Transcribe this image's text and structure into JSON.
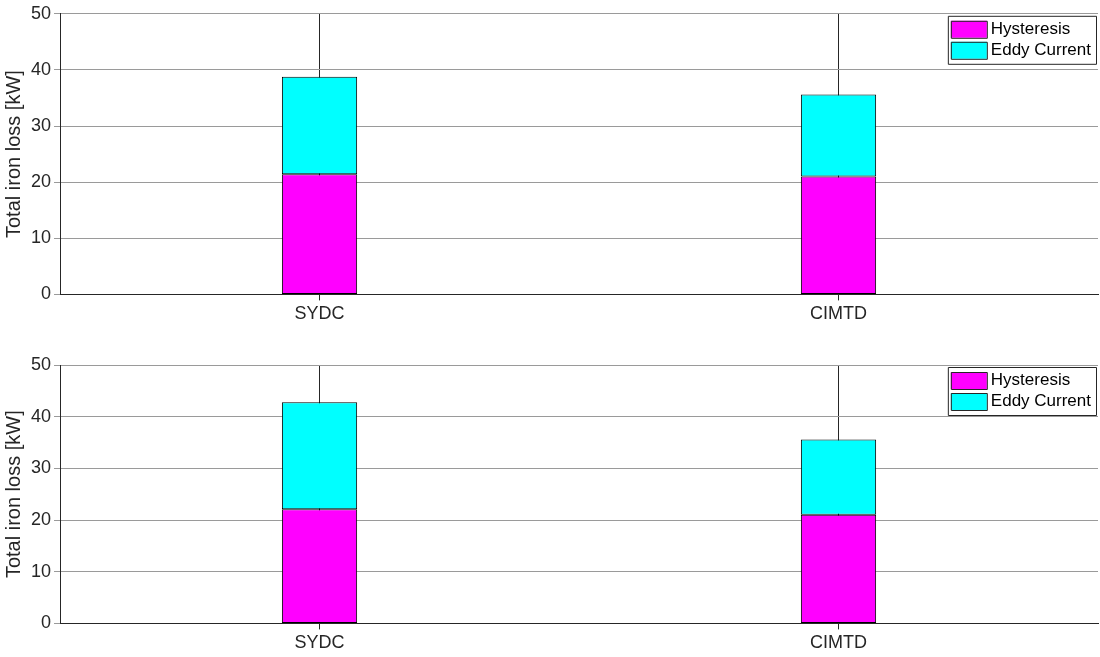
{
  "chart_data": [
    {
      "type": "bar",
      "categories": [
        "SYDC",
        "CIMTD"
      ],
      "stacked": true,
      "ylabel": "Total iron loss [kW]",
      "ylim": [
        0,
        50
      ],
      "yticks": [
        0,
        10,
        20,
        30,
        40,
        50
      ],
      "grid": true,
      "legend": "top right",
      "series": [
        {
          "name": "Hysteresis",
          "color": "#ff00ff",
          "values": [
            21.4,
            21.0
          ]
        },
        {
          "name": "Eddy Current",
          "color": "#00ffff",
          "values": [
            17.4,
            14.6
          ]
        }
      ]
    },
    {
      "type": "bar",
      "categories": [
        "SYDC",
        "CIMTD"
      ],
      "stacked": true,
      "ylabel": "Total iron loss [kW]",
      "ylim": [
        0,
        50
      ],
      "yticks": [
        0,
        10,
        20,
        30,
        40,
        50
      ],
      "grid": true,
      "legend": "top right",
      "series": [
        {
          "name": "Hysteresis",
          "color": "#ff00ff",
          "values": [
            22.1,
            21.0
          ]
        },
        {
          "name": "Eddy Current",
          "color": "#00ffff",
          "values": [
            20.7,
            14.6
          ]
        }
      ]
    }
  ]
}
